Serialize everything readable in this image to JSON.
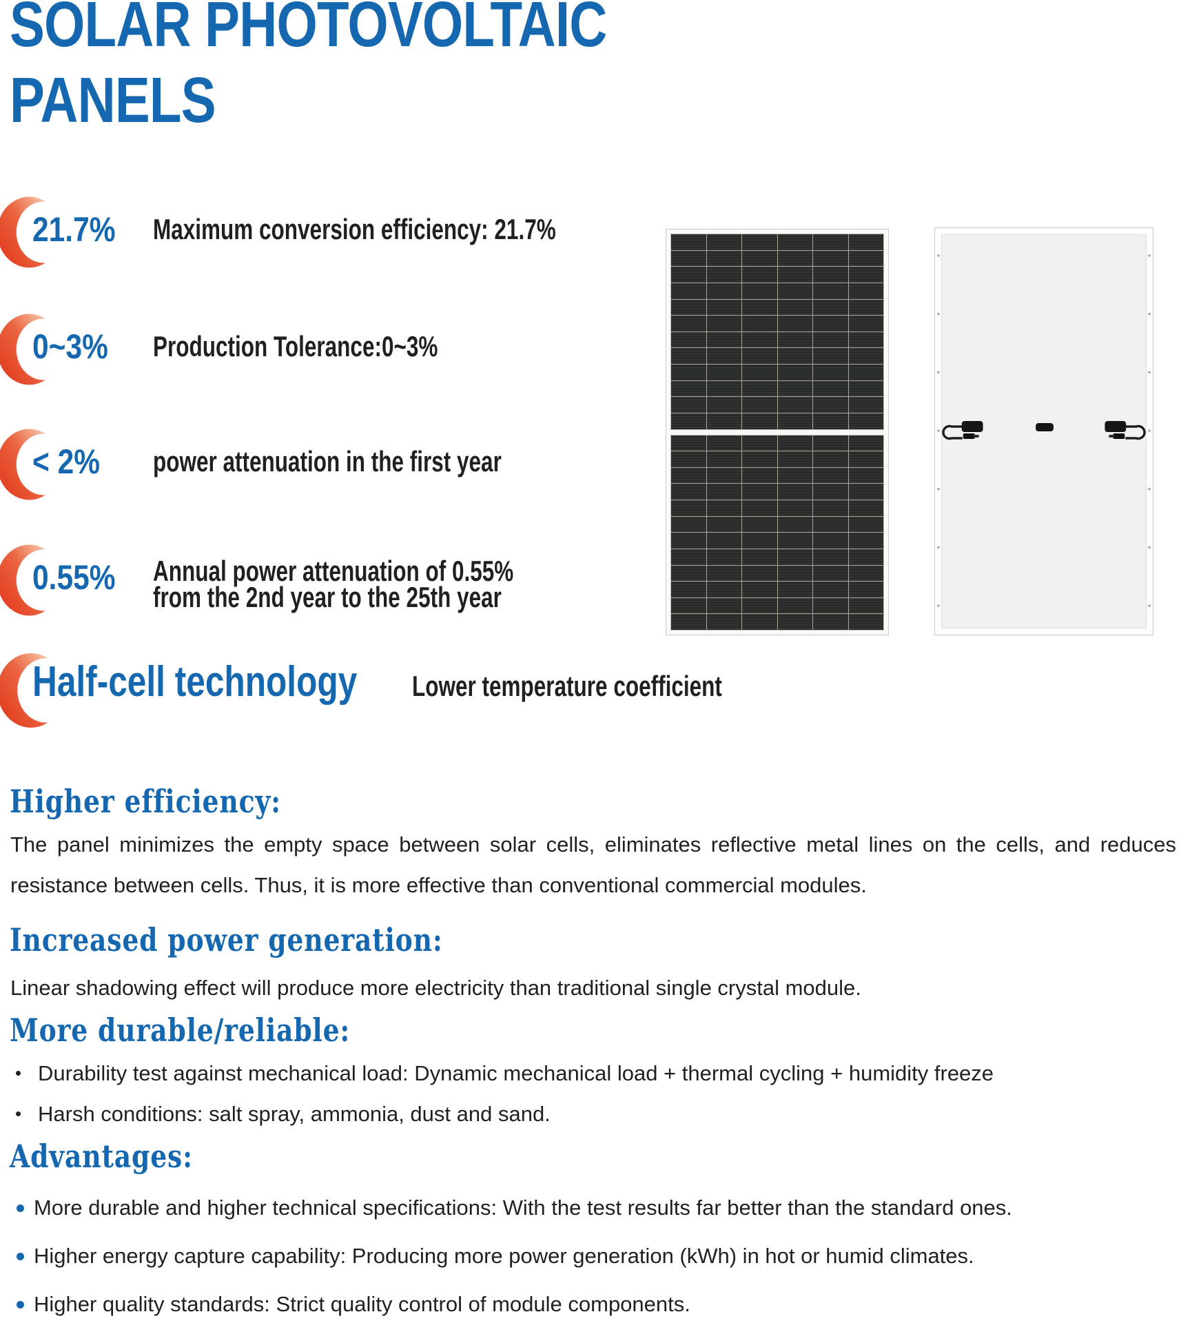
{
  "colors": {
    "accent_blue": "#1568b0",
    "text_black": "#231f20",
    "crescent_red": "#e23c1e",
    "crescent_light": "#fbdccd"
  },
  "title": {
    "line1": "SOLAR PHOTOVOLTAIC",
    "line2": "PANELS"
  },
  "stats": [
    {
      "value": "21.7%",
      "label": "Maximum conversion efficiency: 21.7%"
    },
    {
      "value": "0~3%",
      "label": "Production Tolerance:0~3%"
    },
    {
      "value": "< 2%",
      "label": "power attenuation in the first year"
    },
    {
      "value": "0.55%",
      "label": "Annual power attenuation of 0.55%\nfrom the 2nd year to the 25th year"
    },
    {
      "value": "Half-cell technology",
      "label": "Lower temperature coefficient"
    }
  ],
  "sections": [
    {
      "heading": "Higher efficiency:",
      "body": "The panel minimizes the empty space between solar cells, eliminates reflective metal lines on the cells, and reduces resistance between cells. Thus, it is more effective than conventional commercial modules."
    },
    {
      "heading": "Increased power generation:",
      "body": "Linear shadowing effect will produce more electricity than traditional single crystal module."
    },
    {
      "heading": "More durable/reliable:",
      "bullets": [
        "Durability test against mechanical load: Dynamic mechanical load + thermal cycling + humidity freeze",
        "Harsh conditions: salt spray, ammonia, dust and sand."
      ]
    },
    {
      "heading": "Advantages:",
      "bullets": [
        "More durable and higher technical specifications: With the test results far better than the standard ones.",
        "Higher energy capture capability: Producing more power generation (kWh) in hot or humid climates.",
        "Higher quality standards: Strict quality control of module components."
      ]
    }
  ]
}
